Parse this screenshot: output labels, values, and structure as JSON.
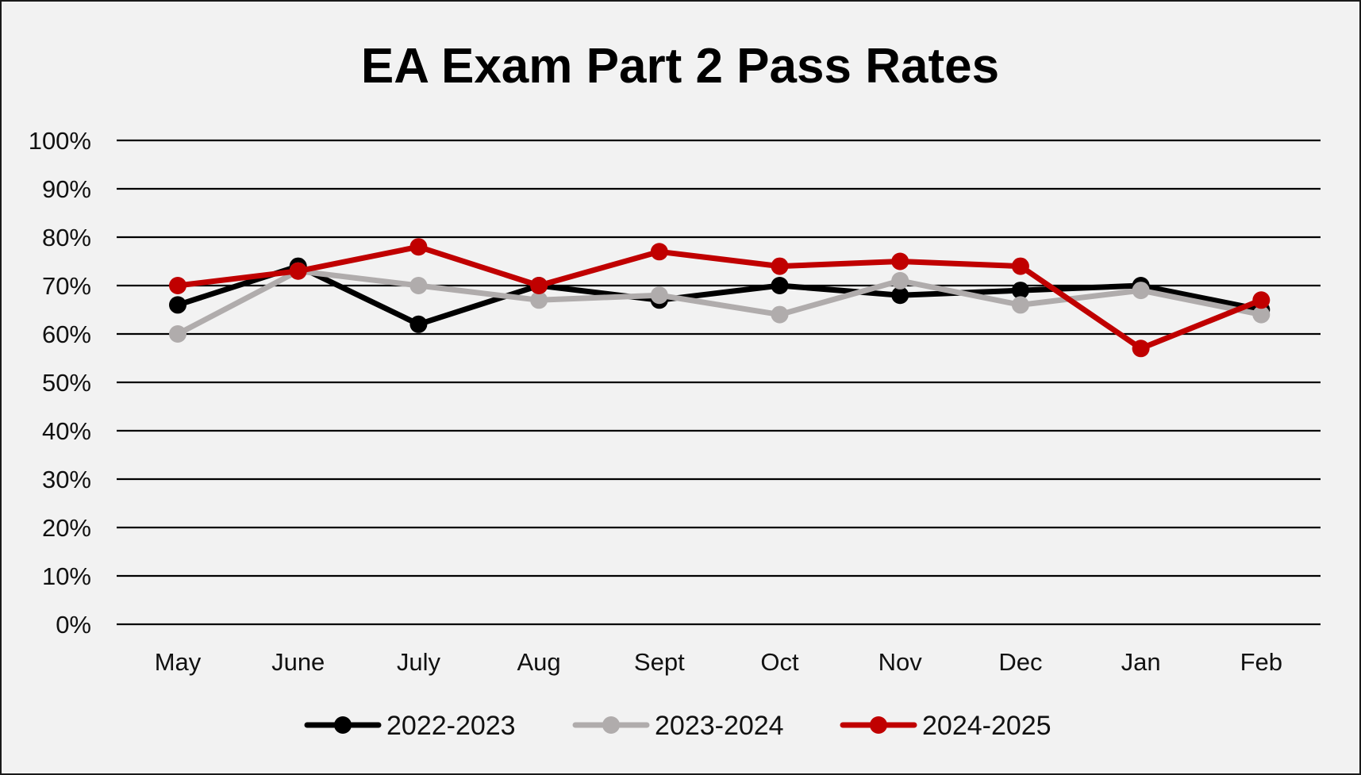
{
  "chart_data": {
    "type": "line",
    "title": "EA Exam Part 2 Pass Rates",
    "xlabel": "",
    "ylabel": "",
    "categories": [
      "May",
      "June",
      "July",
      "Aug",
      "Sept",
      "Oct",
      "Nov",
      "Dec",
      "Jan",
      "Feb"
    ],
    "y_ticks": [
      "0%",
      "10%",
      "20%",
      "30%",
      "40%",
      "50%",
      "60%",
      "70%",
      "80%",
      "90%",
      "100%"
    ],
    "ylim": [
      0,
      100
    ],
    "y_unit": "%",
    "grid": true,
    "legend_position": "bottom",
    "series": [
      {
        "name": "2022-2023",
        "color": "#000000",
        "values": [
          66,
          74,
          62,
          70,
          67,
          70,
          68,
          69,
          70,
          65
        ]
      },
      {
        "name": "2023-2024",
        "color": "#b0acac",
        "values": [
          60,
          73,
          70,
          67,
          68,
          64,
          71,
          66,
          69,
          64
        ]
      },
      {
        "name": "2024-2025",
        "color": "#c00000",
        "values": [
          70,
          73,
          78,
          70,
          77,
          74,
          75,
          74,
          57,
          67
        ]
      }
    ]
  }
}
